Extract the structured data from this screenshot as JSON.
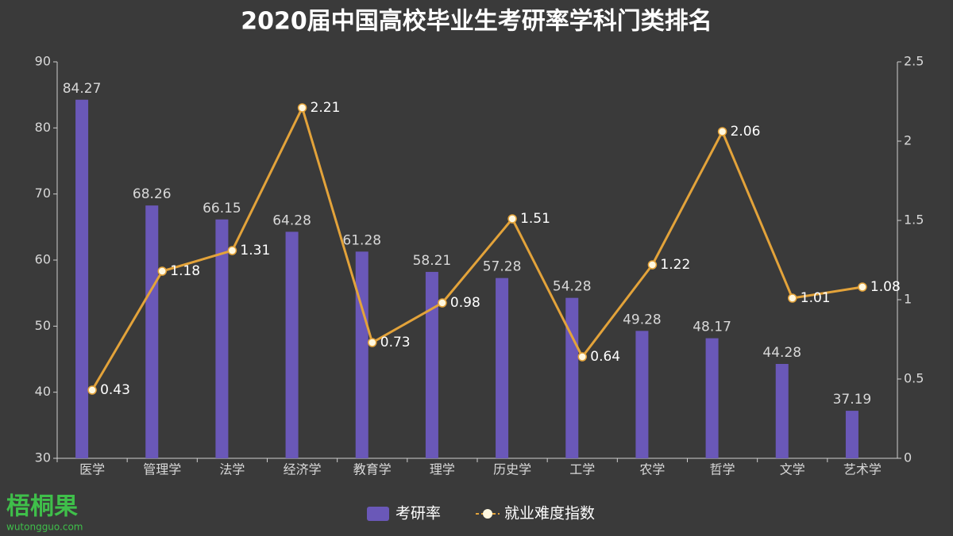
{
  "chart_data": {
    "type": "bar",
    "title": "2020届中国高校毕业生考研率学科门类排名",
    "categories": [
      "医学",
      "管理学",
      "法学",
      "经济学",
      "教育学",
      "理学",
      "历史学",
      "工学",
      "农学",
      "哲学",
      "文学",
      "艺术学"
    ],
    "series": [
      {
        "name": "考研率",
        "color": "#6a58b8",
        "values": [
          84.27,
          68.26,
          66.15,
          64.28,
          61.28,
          58.21,
          57.28,
          54.28,
          49.28,
          48.17,
          44.28,
          37.19
        ]
      },
      {
        "name": "就业难度指数",
        "type": "line",
        "axis": "y2",
        "color": "#e3a33a",
        "values": [
          0.43,
          1.18,
          1.31,
          2.21,
          0.73,
          0.98,
          1.51,
          0.64,
          1.22,
          2.06,
          1.01,
          1.08
        ]
      }
    ],
    "ylim": [
      30,
      90
    ],
    "yticks": [
      30,
      40,
      50,
      60,
      70,
      80,
      90
    ],
    "y2lim": [
      0,
      2.5
    ],
    "y2ticks": [
      0,
      0.5,
      1,
      1.5,
      2,
      2.5
    ],
    "grid": false,
    "legend": "bottom",
    "watermark": {
      "brand": "梧桐果",
      "url": "wutongguo.com"
    }
  }
}
